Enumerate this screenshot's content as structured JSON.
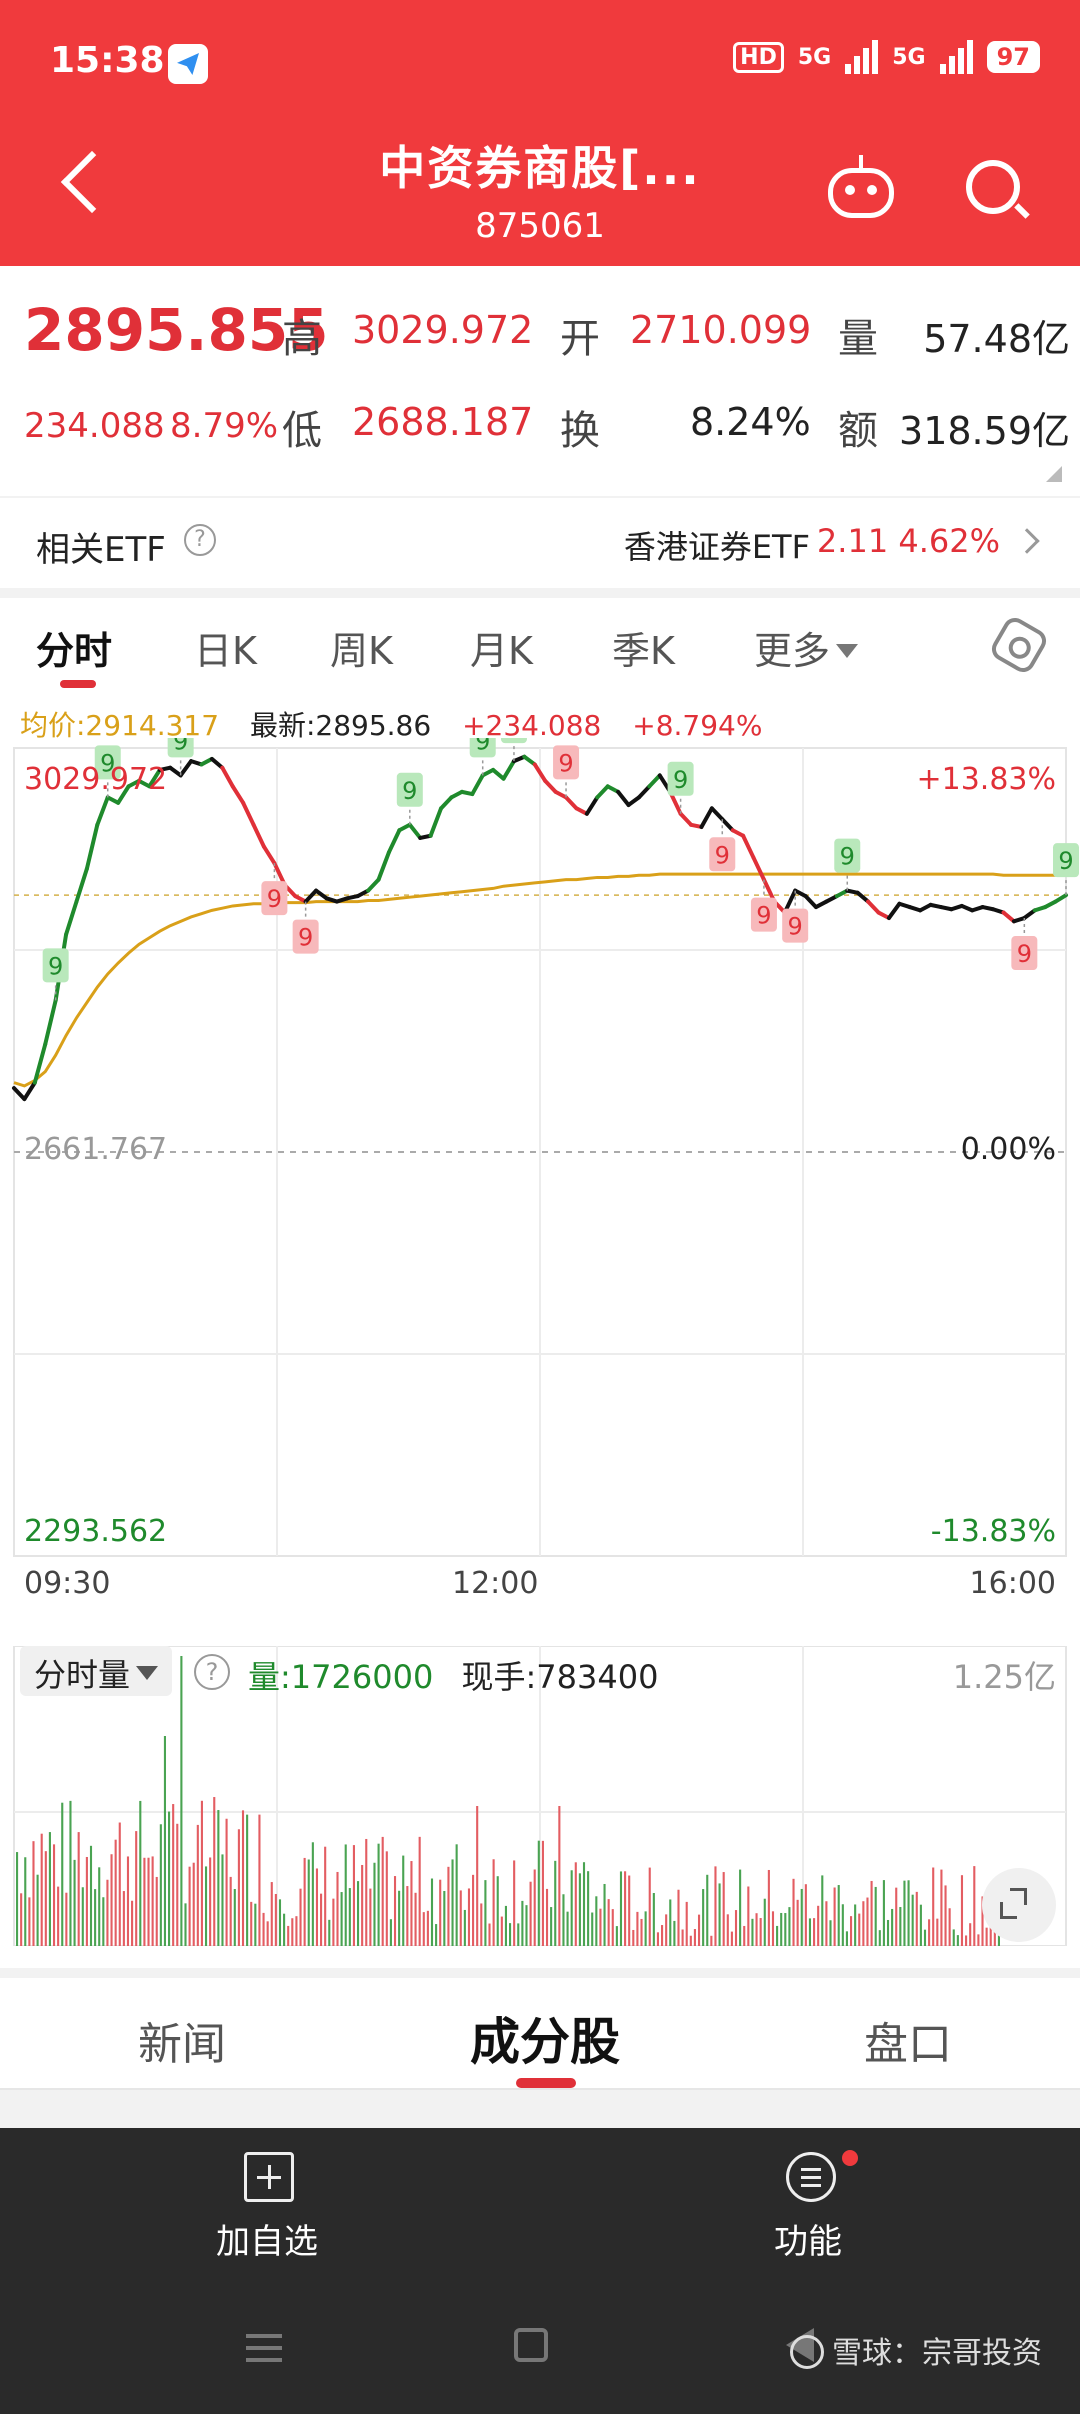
{
  "status_bar": {
    "time": "15:38",
    "network_badges": [
      "HD",
      "5G",
      "5G"
    ],
    "battery": "97"
  },
  "header": {
    "title": "中资券商股[...",
    "code": "875061",
    "icons": [
      "back-icon",
      "robot-icon",
      "search-icon"
    ]
  },
  "quote": {
    "last_price": "2895.855",
    "change": "234.088",
    "change_pct": "8.79%",
    "high_label": "高",
    "high": "3029.972",
    "open_label": "开",
    "open": "2710.099",
    "volume_label": "量",
    "volume": "57.48亿",
    "low_label": "低",
    "low": "2688.187",
    "turnover_label": "换",
    "turnover": "8.24%",
    "amount_label": "额",
    "amount": "318.59亿"
  },
  "etf": {
    "label": "相关ETF",
    "help": "?",
    "name": "香港证券ETF",
    "price": "2.11",
    "pct": "4.62%"
  },
  "chart_tabs": {
    "items": [
      "分时",
      "日K",
      "周K",
      "月K",
      "季K",
      "更多"
    ],
    "active": 0
  },
  "chart_info": {
    "avg": "均价:2914.317",
    "latest": "最新:2895.86",
    "change": "+234.088",
    "pct": "+8.794%"
  },
  "chart_data": {
    "type": "line",
    "y_top_label": "3029.972",
    "y_mid_label": "2661.767",
    "y_bottom_label": "2293.562",
    "pct_top_label": "+13.83%",
    "pct_mid_label": "0.00%",
    "pct_bottom_label": "-13.83%",
    "x_labels": [
      "09:30",
      "12:00",
      "16:00"
    ],
    "ylim": [
      2293.562,
      3029.972
    ],
    "prev_close": 2661.767,
    "colors": {
      "up": "#1f8a2c",
      "down": "#e03038",
      "flat": "#111111",
      "avg": "#d9a019"
    },
    "series": [
      {
        "values": [
          2720,
          2710,
          2725,
          2760,
          2800,
          2860,
          2890,
          2920,
          2960,
          2985,
          2980,
          2995,
          3000,
          2995,
          3010,
          3012,
          3005,
          3018,
          3015,
          3020,
          3012,
          2995,
          2980,
          2960,
          2940,
          2925,
          2905,
          2895,
          2890,
          2900,
          2893,
          2890,
          2893,
          2895,
          2900,
          2910,
          2935,
          2955,
          2960,
          2948,
          2950,
          2975,
          2985,
          2990,
          2988,
          3005,
          3010,
          3002,
          3018,
          3022,
          3015,
          3000,
          2990,
          2985,
          2975,
          2970,
          2985,
          2995,
          2990,
          2978,
          2985,
          2995,
          3005,
          2990,
          2970,
          2960,
          2958,
          2975,
          2965,
          2955,
          2950,
          2930,
          2910,
          2890,
          2880,
          2900,
          2895,
          2885,
          2890,
          2895,
          2900,
          2898,
          2890,
          2880,
          2875,
          2888,
          2885,
          2882,
          2887,
          2885,
          2883,
          2886,
          2882,
          2885,
          2883,
          2880,
          2872,
          2875,
          2882,
          2885,
          2890,
          2895.86
        ]
      },
      {
        "name": "均价",
        "values": [
          2725,
          2722,
          2727,
          2735,
          2750,
          2768,
          2784,
          2798,
          2812,
          2824,
          2834,
          2843,
          2851,
          2857,
          2863,
          2868,
          2872,
          2876,
          2879,
          2882,
          2884,
          2886,
          2887,
          2888,
          2888,
          2889,
          2889,
          2889,
          2889,
          2890,
          2890,
          2890,
          2890,
          2890,
          2891,
          2891,
          2892,
          2893,
          2894,
          2895,
          2896,
          2897,
          2898,
          2899,
          2900,
          2901,
          2902,
          2904,
          2905,
          2906,
          2907,
          2908,
          2909,
          2910,
          2910,
          2911,
          2912,
          2912,
          2913,
          2913,
          2914,
          2914,
          2915,
          2915,
          2915,
          2915,
          2915,
          2915,
          2915,
          2915,
          2915,
          2915,
          2915,
          2915,
          2915,
          2915,
          2915,
          2915,
          2915,
          2915,
          2915,
          2915,
          2915,
          2915,
          2915,
          2915,
          2915,
          2915,
          2915,
          2915,
          2915,
          2915,
          2915,
          2915,
          2915,
          2914,
          2914,
          2914,
          2914,
          2914,
          2914,
          2914.317
        ]
      }
    ],
    "markers": [
      {
        "index": 4,
        "label": "9",
        "kind": "up",
        "pos": "above"
      },
      {
        "index": 9,
        "label": "9",
        "kind": "up",
        "pos": "above"
      },
      {
        "index": 16,
        "label": "9",
        "kind": "up",
        "pos": "above"
      },
      {
        "index": 25,
        "label": "9",
        "kind": "down",
        "pos": "below"
      },
      {
        "index": 28,
        "label": "9",
        "kind": "down",
        "pos": "below"
      },
      {
        "index": 38,
        "label": "9",
        "kind": "up",
        "pos": "above"
      },
      {
        "index": 45,
        "label": "9",
        "kind": "up",
        "pos": "above"
      },
      {
        "index": 48,
        "label": "9",
        "kind": "up",
        "pos": "above"
      },
      {
        "index": 53,
        "label": "9",
        "kind": "down",
        "pos": "above"
      },
      {
        "index": 64,
        "label": "9",
        "kind": "up",
        "pos": "above"
      },
      {
        "index": 68,
        "label": "9",
        "kind": "down",
        "pos": "below"
      },
      {
        "index": 72,
        "label": "9",
        "kind": "down",
        "pos": "below"
      },
      {
        "index": 75,
        "label": "9",
        "kind": "down",
        "pos": "below"
      },
      {
        "index": 80,
        "label": "9",
        "kind": "up",
        "pos": "above"
      },
      {
        "index": 97,
        "label": "9",
        "kind": "down",
        "pos": "below"
      },
      {
        "index": 101,
        "label": "9",
        "kind": "up",
        "pos": "above"
      }
    ]
  },
  "volume": {
    "dropdown": "分时量",
    "help": "?",
    "vol_text": "量:1726000",
    "hand_text": "现手:783400",
    "max_label": "1.25亿"
  },
  "bottom_tabs": {
    "items": [
      "新闻",
      "成分股",
      "盘口"
    ],
    "active": 1
  },
  "footer": {
    "add": "加自选",
    "func": "功能",
    "watermark": "雪球：宗哥投资"
  }
}
